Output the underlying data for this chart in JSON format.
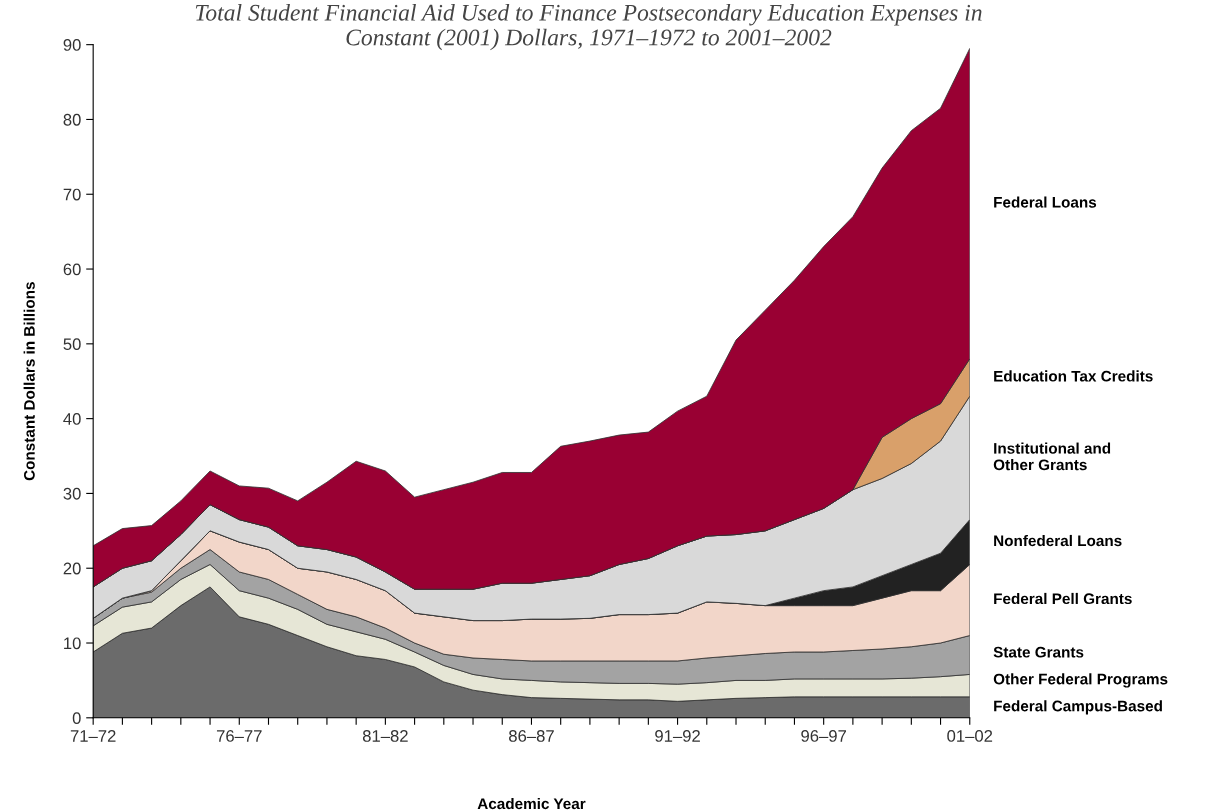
{
  "chart_data": {
    "type": "area",
    "stacked": true,
    "title": "Total Student Financial Aid Used to Finance Postsecondary Education Expenses in\nConstant (2001) Dollars, 1971–1972 to 2001–2002",
    "xlabel": "Academic Year",
    "ylabel": "Constant Dollars in Billions",
    "categories": [
      "71–72",
      null,
      null,
      null,
      null,
      "76–77",
      null,
      null,
      null,
      null,
      "81–82",
      null,
      null,
      null,
      null,
      "86–87",
      null,
      null,
      null,
      null,
      "91–92",
      null,
      null,
      null,
      null,
      "96–97",
      null,
      null,
      null,
      null,
      "01–02"
    ],
    "ylim": [
      0,
      90
    ],
    "yticks": [
      0,
      10,
      20,
      30,
      40,
      50,
      60,
      70,
      80,
      90
    ],
    "grid": false,
    "legend": false,
    "series": [
      {
        "name": "Federal Campus-Based",
        "color": "#6b6b6b",
        "values": [
          8.8,
          11.3,
          12,
          15,
          17.5,
          13.5,
          12.5,
          11,
          9.5,
          8.3,
          7.8,
          6.8,
          4.8,
          3.7,
          3.1,
          2.7,
          2.6,
          2.5,
          2.4,
          2.4,
          2.2,
          2.4,
          2.6,
          2.7,
          2.8,
          2.8,
          2.8,
          2.8,
          2.8,
          2.8,
          2.8
        ]
      },
      {
        "name": "Other Federal Programs",
        "color": "#e6e6d6",
        "values": [
          3.5,
          3.5,
          3.5,
          3.5,
          3,
          3.5,
          3.5,
          3.5,
          3,
          3.2,
          2.7,
          2,
          2.2,
          2.1,
          2.1,
          2.3,
          2.2,
          2.2,
          2.2,
          2.2,
          2.3,
          2.3,
          2.4,
          2.3,
          2.4,
          2.4,
          2.4,
          2.4,
          2.5,
          2.7,
          3.0
        ]
      },
      {
        "name": "State Grants",
        "color": "#a3a3a3",
        "values": [
          1.0,
          1.2,
          1.3,
          1.5,
          2.0,
          2.5,
          2.5,
          2.0,
          2.0,
          2.0,
          1.5,
          1.2,
          1.5,
          2.2,
          2.6,
          2.6,
          2.8,
          2.9,
          3.0,
          3.0,
          3.1,
          3.3,
          3.3,
          3.6,
          3.6,
          3.6,
          3.8,
          4.0,
          4.2,
          4.5,
          5.2
        ]
      },
      {
        "name": "Federal Pell Grants",
        "color": "#f2d6c9",
        "values": [
          0,
          0,
          0.2,
          1,
          2.5,
          4,
          4,
          3.5,
          5,
          5,
          5,
          4,
          5,
          5,
          5.2,
          5.6,
          5.6,
          5.7,
          6.2,
          6.2,
          6.4,
          7.5,
          7,
          6.4,
          6.2,
          6.2,
          6,
          6.8,
          7.5,
          7,
          9.5
        ]
      },
      {
        "name": "Nonfederal Loans",
        "color": "#222222",
        "values": [
          0,
          0,
          0,
          0,
          0,
          0,
          0,
          0,
          0,
          0,
          0,
          0,
          0,
          0,
          0,
          0,
          0,
          0,
          0,
          0,
          0,
          0,
          0,
          0,
          1,
          2,
          2.5,
          3,
          3.5,
          5,
          6
        ]
      },
      {
        "name": "Institutional and\nOther Grants",
        "color": "#d9d9d9",
        "values": [
          4.2,
          4,
          4,
          3.5,
          3.5,
          3,
          3,
          3,
          3,
          3,
          2.5,
          3.2,
          3.7,
          4.2,
          5,
          4.8,
          5.3,
          5.7,
          6.7,
          7.5,
          9,
          8.8,
          9.2,
          10,
          10.5,
          11,
          13,
          13,
          13.5,
          15,
          16.5
        ]
      },
      {
        "name": "Education Tax Credits",
        "color": "#d9a06a",
        "values": [
          0,
          0,
          0,
          0,
          0,
          0,
          0,
          0,
          0,
          0,
          0,
          0,
          0,
          0,
          0,
          0,
          0,
          0,
          0,
          0,
          0,
          0,
          0,
          0,
          0,
          0,
          0,
          5.5,
          6,
          5,
          5
        ]
      },
      {
        "name": "Federal Loans",
        "color": "#990033",
        "values": [
          5.5,
          5.3,
          4.7,
          4.5,
          4.5,
          4.5,
          5.2,
          6,
          9,
          12.8,
          13.5,
          12.3,
          13.3,
          14.3,
          14.8,
          14.8,
          17.8,
          18,
          17.3,
          16.9,
          18,
          18.7,
          26,
          29.5,
          32,
          35,
          36.5,
          36,
          38.5,
          39.5,
          41.5
        ]
      }
    ]
  }
}
